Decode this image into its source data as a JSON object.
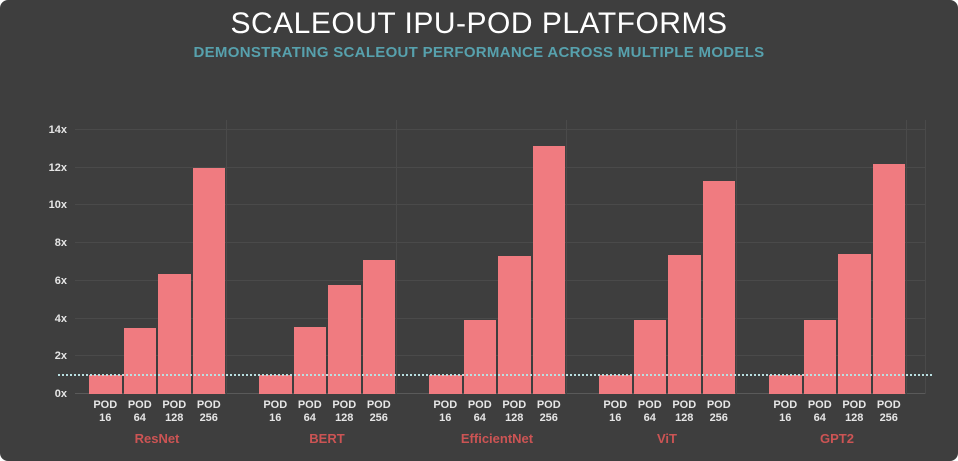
{
  "header": {
    "title": "SCALEOUT IPU-POD PLATFORMS",
    "subtitle": "DEMONSTRATING SCALEOUT PERFORMANCE ACROSS MULTIPLE MODELS"
  },
  "chart_data": {
    "type": "bar",
    "title": "SCALEOUT IPU-POD PLATFORMS",
    "subtitle": "DEMONSTRATING SCALEOUT PERFORMANCE ACROSS MULTIPLE MODELS",
    "xlabel": "",
    "ylabel": "",
    "ylim": [
      0,
      14
    ],
    "yticks": [
      0,
      2,
      4,
      6,
      8,
      10,
      12,
      14
    ],
    "ytick_suffix": "x",
    "grid": "horizontal",
    "legend": "none",
    "reference_line_y": 1,
    "categories": [
      "POD 16",
      "POD 64",
      "POD 128",
      "POD 256"
    ],
    "series": [
      {
        "name": "ResNet",
        "values": [
          1.0,
          3.5,
          6.35,
          12.0
        ]
      },
      {
        "name": "BERT",
        "values": [
          1.0,
          3.55,
          5.8,
          7.1
        ]
      },
      {
        "name": "EfficientNet",
        "values": [
          1.0,
          3.9,
          7.3,
          13.15
        ]
      },
      {
        "name": "ViT",
        "values": [
          1.0,
          3.95,
          7.35,
          11.3
        ]
      },
      {
        "name": "GPT2",
        "values": [
          1.0,
          3.9,
          7.4,
          12.2
        ]
      }
    ]
  },
  "colors": {
    "background": "#3e3e3e",
    "bar": "#f07b80",
    "title": "#ffffff",
    "subtitle": "#57a1ad",
    "grid": "#4a4a4a",
    "axis_line": "#5a5a5a",
    "tick_text": "#e6e6e6",
    "group_label": "#cc5454",
    "reference_line": "#b9dfe1"
  }
}
